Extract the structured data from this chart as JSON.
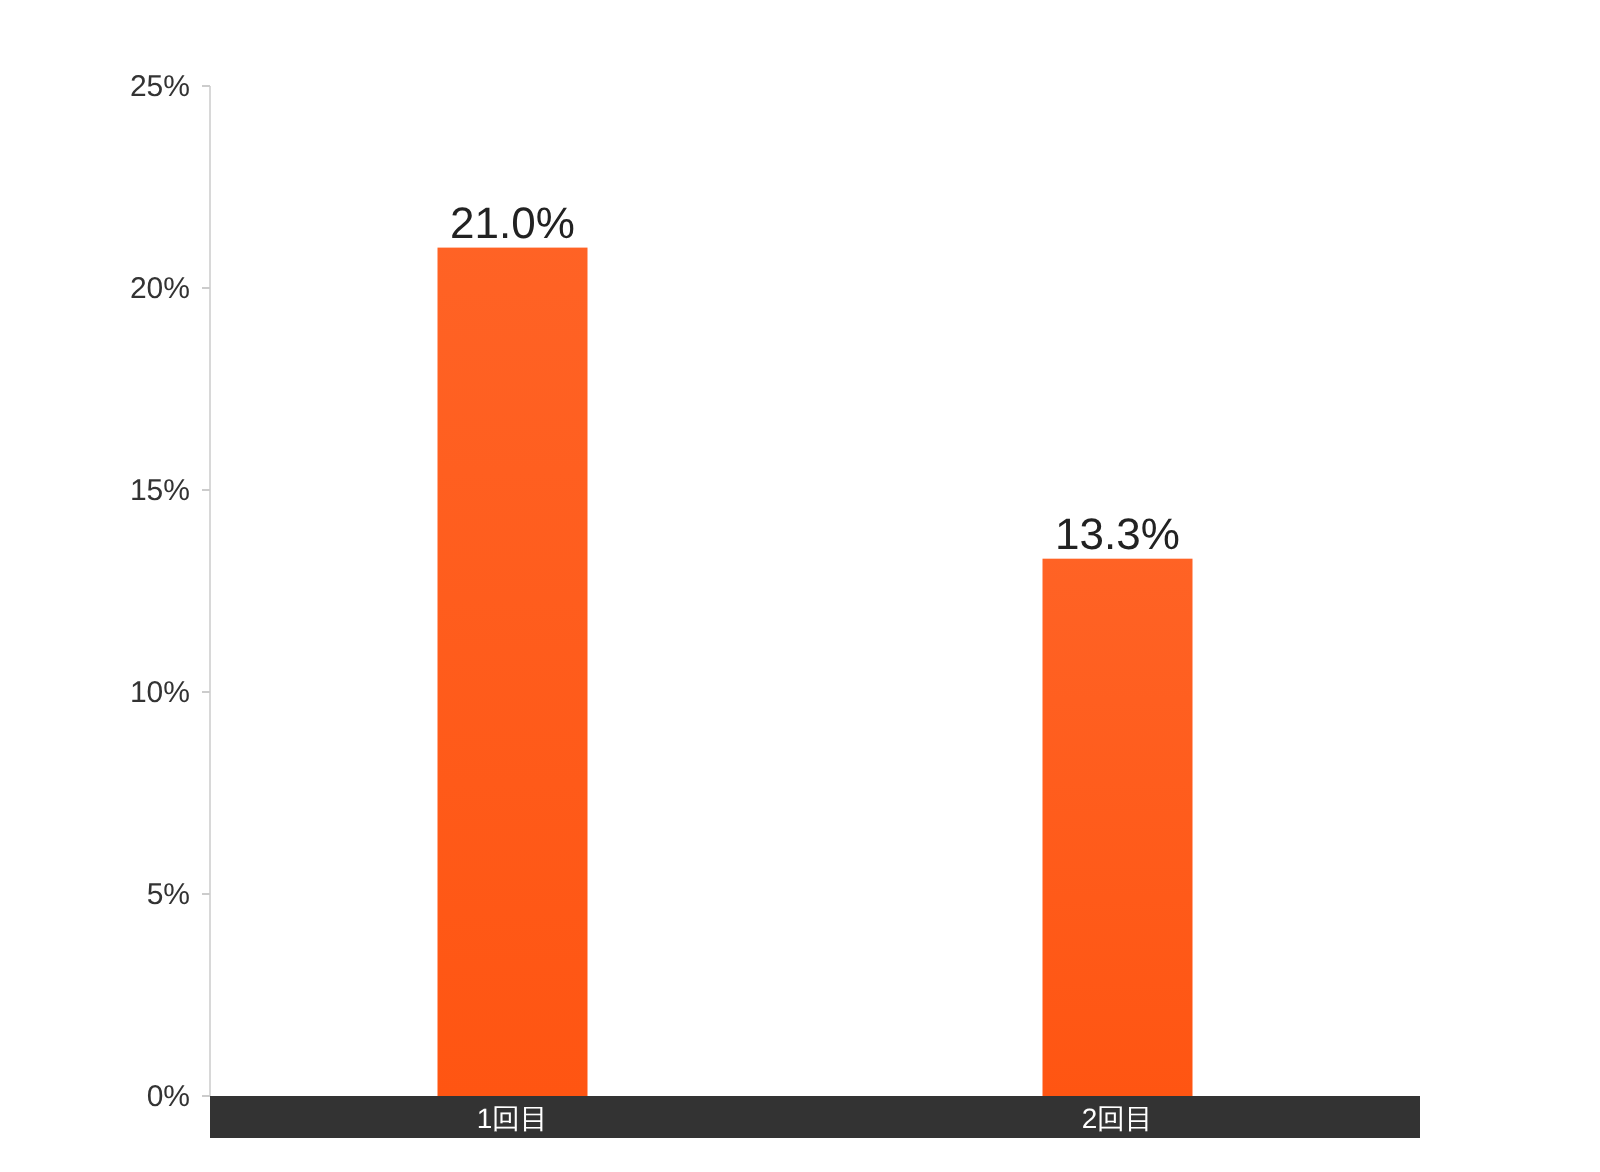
{
  "chart_data": {
    "type": "bar",
    "categories": [
      "1回目",
      "2回目"
    ],
    "values": [
      21.0,
      13.3
    ],
    "value_labels": [
      "21.0%",
      "13.3%"
    ],
    "color": "#ff5512",
    "ylim": [
      0,
      25
    ],
    "yticks": [
      {
        "value": 0,
        "label": "0%"
      },
      {
        "value": 5,
        "label": "5%"
      },
      {
        "value": 10,
        "label": "10%"
      },
      {
        "value": 15,
        "label": "15%"
      },
      {
        "value": 20,
        "label": "20%"
      },
      {
        "value": 25,
        "label": "25%"
      }
    ],
    "grid": false
  }
}
